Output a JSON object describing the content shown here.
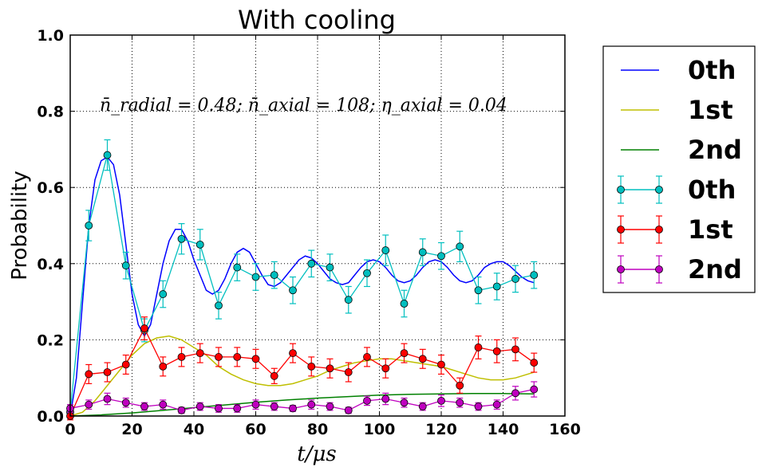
{
  "chart_data": {
    "type": "line",
    "title": "With cooling",
    "xlabel": "t/μs",
    "ylabel": "Probability",
    "annotation": "n̄_radial = 0.48; n̄_axial = 108; η_axial = 0.04",
    "xlim": [
      0,
      160
    ],
    "ylim": [
      0,
      1.0
    ],
    "xticks": [
      "0",
      "20",
      "40",
      "60",
      "80",
      "100",
      "120",
      "140",
      "160"
    ],
    "yticks": [
      "0.0",
      "0.2",
      "0.4",
      "0.6",
      "0.8",
      "1.0"
    ],
    "grid": true,
    "legend_position": "outside-right",
    "theory_series": [
      {
        "name": "0th",
        "color": "#0000ff",
        "x": [
          0,
          2,
          4,
          6,
          8,
          10,
          12,
          14,
          16,
          18,
          20,
          22,
          24,
          26,
          28,
          30,
          32,
          34,
          36,
          38,
          40,
          42,
          44,
          46,
          48,
          50,
          52,
          54,
          56,
          58,
          60,
          62,
          64,
          66,
          68,
          70,
          72,
          74,
          76,
          78,
          80,
          82,
          84,
          86,
          88,
          90,
          92,
          94,
          96,
          98,
          100,
          102,
          104,
          106,
          108,
          110,
          112,
          114,
          116,
          118,
          120,
          122,
          124,
          126,
          128,
          130,
          132,
          134,
          136,
          138,
          140,
          142,
          144,
          146,
          148,
          150
        ],
        "y": [
          0.0,
          0.1,
          0.3,
          0.5,
          0.62,
          0.67,
          0.68,
          0.66,
          0.58,
          0.45,
          0.32,
          0.24,
          0.21,
          0.24,
          0.32,
          0.4,
          0.46,
          0.49,
          0.49,
          0.46,
          0.41,
          0.37,
          0.33,
          0.32,
          0.33,
          0.36,
          0.4,
          0.43,
          0.44,
          0.43,
          0.4,
          0.37,
          0.345,
          0.34,
          0.35,
          0.37,
          0.39,
          0.41,
          0.42,
          0.415,
          0.4,
          0.38,
          0.36,
          0.35,
          0.345,
          0.35,
          0.37,
          0.39,
          0.405,
          0.41,
          0.405,
          0.39,
          0.37,
          0.355,
          0.35,
          0.355,
          0.37,
          0.39,
          0.405,
          0.41,
          0.405,
          0.39,
          0.37,
          0.355,
          0.35,
          0.355,
          0.37,
          0.39,
          0.4,
          0.405,
          0.405,
          0.395,
          0.38,
          0.365,
          0.355,
          0.35
        ]
      },
      {
        "name": "1st",
        "color": "#bfbf00",
        "x": [
          0,
          4,
          8,
          12,
          16,
          20,
          24,
          28,
          32,
          36,
          40,
          44,
          48,
          52,
          56,
          60,
          64,
          68,
          72,
          76,
          80,
          84,
          88,
          92,
          96,
          100,
          104,
          108,
          112,
          116,
          120,
          124,
          128,
          132,
          136,
          140,
          144,
          148,
          150
        ],
        "y": [
          0.0,
          0.01,
          0.04,
          0.08,
          0.12,
          0.16,
          0.19,
          0.205,
          0.21,
          0.2,
          0.18,
          0.16,
          0.13,
          0.11,
          0.095,
          0.085,
          0.08,
          0.08,
          0.085,
          0.095,
          0.105,
          0.12,
          0.13,
          0.14,
          0.145,
          0.15,
          0.15,
          0.145,
          0.14,
          0.135,
          0.13,
          0.12,
          0.11,
          0.1,
          0.095,
          0.095,
          0.1,
          0.11,
          0.115
        ]
      },
      {
        "name": "2nd",
        "color": "#008000",
        "x": [
          0,
          10,
          20,
          30,
          40,
          50,
          60,
          70,
          80,
          90,
          100,
          110,
          120,
          130,
          140,
          150
        ],
        "y": [
          0.0,
          0.003,
          0.008,
          0.015,
          0.022,
          0.029,
          0.036,
          0.042,
          0.047,
          0.051,
          0.055,
          0.057,
          0.058,
          0.059,
          0.059,
          0.058
        ]
      }
    ],
    "measured_series": [
      {
        "name": "0th",
        "color": "#00bfbf",
        "x": [
          0,
          6,
          12,
          18,
          24,
          30,
          36,
          42,
          48,
          54,
          60,
          66,
          72,
          78,
          84,
          90,
          96,
          102,
          108,
          114,
          120,
          126,
          132,
          138,
          144,
          150
        ],
        "y": [
          0.01,
          0.5,
          0.685,
          0.395,
          0.225,
          0.32,
          0.465,
          0.45,
          0.29,
          0.39,
          0.365,
          0.37,
          0.33,
          0.4,
          0.39,
          0.305,
          0.375,
          0.435,
          0.295,
          0.43,
          0.42,
          0.445,
          0.33,
          0.34,
          0.36,
          0.37
        ],
        "err": [
          0.01,
          0.04,
          0.04,
          0.035,
          0.03,
          0.035,
          0.04,
          0.04,
          0.035,
          0.035,
          0.035,
          0.035,
          0.035,
          0.035,
          0.035,
          0.035,
          0.035,
          0.04,
          0.035,
          0.035,
          0.035,
          0.04,
          0.035,
          0.035,
          0.035,
          0.035
        ]
      },
      {
        "name": "1st",
        "color": "#ff0000",
        "x": [
          0,
          6,
          12,
          18,
          24,
          30,
          36,
          42,
          48,
          54,
          60,
          66,
          72,
          78,
          84,
          90,
          96,
          102,
          108,
          114,
          120,
          126,
          132,
          138,
          144,
          150
        ],
        "y": [
          0.0,
          0.11,
          0.115,
          0.135,
          0.23,
          0.13,
          0.155,
          0.165,
          0.155,
          0.155,
          0.15,
          0.105,
          0.165,
          0.13,
          0.125,
          0.115,
          0.155,
          0.125,
          0.165,
          0.15,
          0.135,
          0.08,
          0.18,
          0.17,
          0.175,
          0.14
        ],
        "err": [
          0.01,
          0.025,
          0.025,
          0.025,
          0.03,
          0.025,
          0.025,
          0.025,
          0.025,
          0.025,
          0.025,
          0.02,
          0.025,
          0.025,
          0.025,
          0.025,
          0.025,
          0.025,
          0.025,
          0.025,
          0.025,
          0.02,
          0.03,
          0.03,
          0.03,
          0.025
        ]
      },
      {
        "name": "2nd",
        "color": "#bf00bf",
        "x": [
          0,
          6,
          12,
          18,
          24,
          30,
          36,
          42,
          48,
          54,
          60,
          66,
          72,
          78,
          84,
          90,
          96,
          102,
          108,
          114,
          120,
          126,
          132,
          138,
          144,
          150
        ],
        "y": [
          0.02,
          0.03,
          0.045,
          0.035,
          0.025,
          0.03,
          0.015,
          0.025,
          0.02,
          0.02,
          0.03,
          0.025,
          0.02,
          0.03,
          0.025,
          0.015,
          0.04,
          0.045,
          0.035,
          0.025,
          0.04,
          0.035,
          0.025,
          0.03,
          0.06,
          0.07
        ],
        "err": [
          0.01,
          0.012,
          0.015,
          0.012,
          0.01,
          0.012,
          0.008,
          0.01,
          0.01,
          0.01,
          0.012,
          0.01,
          0.008,
          0.012,
          0.01,
          0.008,
          0.012,
          0.015,
          0.012,
          0.01,
          0.015,
          0.012,
          0.01,
          0.012,
          0.018,
          0.02
        ]
      }
    ]
  }
}
